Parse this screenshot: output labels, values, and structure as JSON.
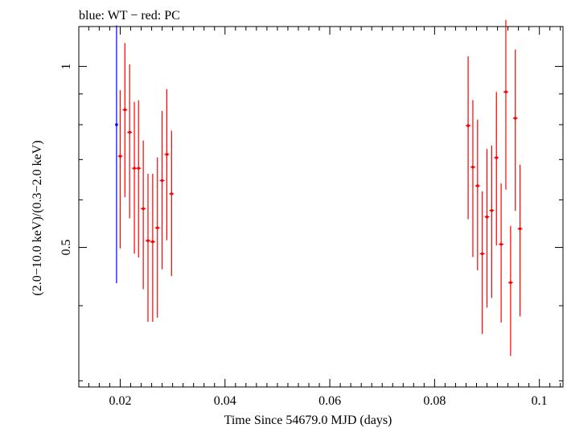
{
  "chart_data": {
    "type": "scatter",
    "title": "blue: WT − red: PC",
    "xlabel": "Time Since 54679.0 MJD (days)",
    "ylabel": "(2.0−10.0 keV)/(0.3−2.0 keV)",
    "xlim": [
      0.0121,
      0.1045
    ],
    "ylim": [
      0.293,
      1.165
    ],
    "y_scale": "log",
    "x_ticks": [
      {
        "value": 0.02,
        "label": "0.02"
      },
      {
        "value": 0.04,
        "label": "0.04"
      },
      {
        "value": 0.06,
        "label": "0.06"
      },
      {
        "value": 0.08,
        "label": "0.08"
      },
      {
        "value": 0.1,
        "label": "0.1"
      }
    ],
    "y_ticks": [
      {
        "value": 0.5,
        "label": "0.5"
      },
      {
        "value": 1.0,
        "label": "1"
      }
    ],
    "series": [
      {
        "name": "WT",
        "color": "#0000ff",
        "points": [
          {
            "x": 0.0193,
            "y": 0.8,
            "ylo": 0.436,
            "yhi": 1.17,
            "xerr": 0.0001
          }
        ]
      },
      {
        "name": "PC",
        "color": "#ff0000",
        "points": [
          {
            "x": 0.02,
            "y": 0.709,
            "ylo": 0.498,
            "yhi": 0.913,
            "xerr": 0.00045
          },
          {
            "x": 0.0209,
            "y": 0.847,
            "ylo": 0.606,
            "yhi": 1.094,
            "xerr": 0.00045
          },
          {
            "x": 0.0218,
            "y": 0.777,
            "ylo": 0.559,
            "yhi": 1.008,
            "xerr": 0.00045
          },
          {
            "x": 0.0227,
            "y": 0.677,
            "ylo": 0.488,
            "yhi": 0.873,
            "xerr": 0.00045
          },
          {
            "x": 0.0235,
            "y": 0.677,
            "ylo": 0.481,
            "yhi": 0.878,
            "xerr": 0.00045
          },
          {
            "x": 0.0244,
            "y": 0.58,
            "ylo": 0.426,
            "yhi": 0.753,
            "xerr": 0.00045
          },
          {
            "x": 0.0253,
            "y": 0.513,
            "ylo": 0.376,
            "yhi": 0.663,
            "xerr": 0.00045
          },
          {
            "x": 0.0262,
            "y": 0.511,
            "ylo": 0.376,
            "yhi": 0.663,
            "xerr": 0.00045
          },
          {
            "x": 0.0271,
            "y": 0.539,
            "ylo": 0.382,
            "yhi": 0.706,
            "xerr": 0.00045
          },
          {
            "x": 0.028,
            "y": 0.646,
            "ylo": 0.46,
            "yhi": 0.843,
            "xerr": 0.00045
          },
          {
            "x": 0.0289,
            "y": 0.714,
            "ylo": 0.514,
            "yhi": 0.917,
            "xerr": 0.00045
          },
          {
            "x": 0.0298,
            "y": 0.614,
            "ylo": 0.448,
            "yhi": 0.782,
            "xerr": 0.00045
          },
          {
            "x": 0.0864,
            "y": 0.797,
            "ylo": 0.557,
            "yhi": 1.04,
            "xerr": 0.00045
          },
          {
            "x": 0.0873,
            "y": 0.68,
            "ylo": 0.482,
            "yhi": 0.879,
            "xerr": 0.00045
          },
          {
            "x": 0.0882,
            "y": 0.633,
            "ylo": 0.458,
            "yhi": 0.816,
            "xerr": 0.00045
          },
          {
            "x": 0.0891,
            "y": 0.488,
            "ylo": 0.359,
            "yhi": 0.62,
            "xerr": 0.00045
          },
          {
            "x": 0.09,
            "y": 0.562,
            "ylo": 0.397,
            "yhi": 0.729,
            "xerr": 0.00045
          },
          {
            "x": 0.0909,
            "y": 0.576,
            "ylo": 0.412,
            "yhi": 0.739,
            "xerr": 0.00045
          },
          {
            "x": 0.0918,
            "y": 0.705,
            "ylo": 0.504,
            "yhi": 0.907,
            "xerr": 0.00045
          },
          {
            "x": 0.0927,
            "y": 0.506,
            "ylo": 0.375,
            "yhi": 0.639,
            "xerr": 0.00045
          },
          {
            "x": 0.0936,
            "y": 0.907,
            "ylo": 0.624,
            "yhi": 1.195,
            "xerr": 0.00045
          },
          {
            "x": 0.0945,
            "y": 0.437,
            "ylo": 0.33,
            "yhi": 0.543,
            "xerr": 0.00045
          },
          {
            "x": 0.0954,
            "y": 0.82,
            "ylo": 0.575,
            "yhi": 1.067,
            "xerr": 0.00045
          },
          {
            "x": 0.0963,
            "y": 0.537,
            "ylo": 0.384,
            "yhi": 0.686,
            "xerr": 0.00045
          }
        ]
      }
    ]
  }
}
